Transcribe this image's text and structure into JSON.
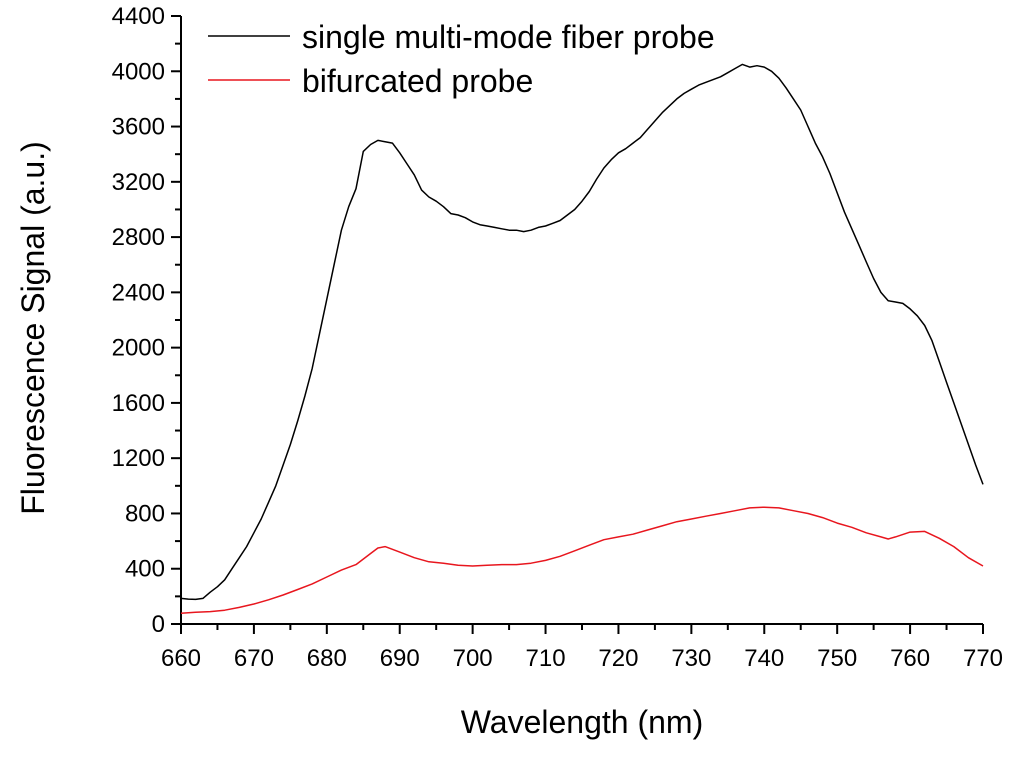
{
  "chart_data": {
    "type": "line",
    "title": "",
    "xlabel": "Wavelength (nm)",
    "ylabel": "Fluorescence Signal (a.u.)",
    "xlim": [
      660,
      770
    ],
    "ylim": [
      0,
      4400
    ],
    "x_ticks": [
      660,
      670,
      680,
      690,
      700,
      710,
      720,
      730,
      740,
      750,
      760,
      770
    ],
    "y_ticks": [
      0,
      400,
      800,
      1200,
      1600,
      2000,
      2400,
      2800,
      3200,
      3600,
      4000,
      4400
    ],
    "grid": false,
    "legend_position": "top-left",
    "series": [
      {
        "name": "single multi-mode fiber probe",
        "color": "#000000",
        "points": [
          [
            660,
            185
          ],
          [
            661,
            180
          ],
          [
            662,
            178
          ],
          [
            663,
            185
          ],
          [
            664,
            230
          ],
          [
            665,
            270
          ],
          [
            666,
            320
          ],
          [
            667,
            400
          ],
          [
            668,
            480
          ],
          [
            669,
            560
          ],
          [
            670,
            660
          ],
          [
            671,
            760
          ],
          [
            672,
            880
          ],
          [
            673,
            1000
          ],
          [
            674,
            1150
          ],
          [
            675,
            1300
          ],
          [
            676,
            1470
          ],
          [
            677,
            1650
          ],
          [
            678,
            1850
          ],
          [
            679,
            2100
          ],
          [
            680,
            2350
          ],
          [
            681,
            2600
          ],
          [
            682,
            2850
          ],
          [
            683,
            3020
          ],
          [
            684,
            3150
          ],
          [
            685,
            3420
          ],
          [
            686,
            3470
          ],
          [
            687,
            3500
          ],
          [
            688,
            3490
          ],
          [
            689,
            3480
          ],
          [
            690,
            3410
          ],
          [
            691,
            3330
          ],
          [
            692,
            3250
          ],
          [
            693,
            3140
          ],
          [
            694,
            3090
          ],
          [
            695,
            3060
          ],
          [
            696,
            3020
          ],
          [
            697,
            2970
          ],
          [
            698,
            2960
          ],
          [
            699,
            2940
          ],
          [
            700,
            2910
          ],
          [
            701,
            2890
          ],
          [
            702,
            2880
          ],
          [
            703,
            2870
          ],
          [
            704,
            2860
          ],
          [
            705,
            2850
          ],
          [
            706,
            2850
          ],
          [
            707,
            2840
          ],
          [
            708,
            2850
          ],
          [
            709,
            2870
          ],
          [
            710,
            2880
          ],
          [
            711,
            2900
          ],
          [
            712,
            2920
          ],
          [
            713,
            2960
          ],
          [
            714,
            3000
          ],
          [
            715,
            3060
          ],
          [
            716,
            3130
          ],
          [
            717,
            3220
          ],
          [
            718,
            3300
          ],
          [
            719,
            3360
          ],
          [
            720,
            3410
          ],
          [
            721,
            3440
          ],
          [
            722,
            3480
          ],
          [
            723,
            3520
          ],
          [
            724,
            3580
          ],
          [
            725,
            3640
          ],
          [
            726,
            3700
          ],
          [
            727,
            3750
          ],
          [
            728,
            3800
          ],
          [
            729,
            3840
          ],
          [
            730,
            3870
          ],
          [
            731,
            3900
          ],
          [
            732,
            3920
          ],
          [
            733,
            3940
          ],
          [
            734,
            3960
          ],
          [
            735,
            3990
          ],
          [
            736,
            4020
          ],
          [
            737,
            4050
          ],
          [
            738,
            4030
          ],
          [
            739,
            4040
          ],
          [
            740,
            4030
          ],
          [
            741,
            4000
          ],
          [
            742,
            3950
          ],
          [
            743,
            3880
          ],
          [
            744,
            3800
          ],
          [
            745,
            3720
          ],
          [
            746,
            3600
          ],
          [
            747,
            3480
          ],
          [
            748,
            3380
          ],
          [
            749,
            3260
          ],
          [
            750,
            3120
          ],
          [
            751,
            2980
          ],
          [
            752,
            2860
          ],
          [
            753,
            2740
          ],
          [
            754,
            2620
          ],
          [
            755,
            2500
          ],
          [
            756,
            2400
          ],
          [
            757,
            2340
          ],
          [
            758,
            2330
          ],
          [
            759,
            2320
          ],
          [
            760,
            2280
          ],
          [
            761,
            2230
          ],
          [
            762,
            2160
          ],
          [
            763,
            2050
          ],
          [
            764,
            1900
          ],
          [
            765,
            1750
          ],
          [
            766,
            1600
          ],
          [
            767,
            1450
          ],
          [
            768,
            1300
          ],
          [
            769,
            1150
          ],
          [
            770,
            1010
          ]
        ]
      },
      {
        "name": "bifurcated probe",
        "color": "#e8161e",
        "points": [
          [
            660,
            78
          ],
          [
            662,
            85
          ],
          [
            664,
            90
          ],
          [
            666,
            100
          ],
          [
            668,
            120
          ],
          [
            670,
            145
          ],
          [
            672,
            175
          ],
          [
            674,
            210
          ],
          [
            676,
            250
          ],
          [
            678,
            290
          ],
          [
            680,
            340
          ],
          [
            682,
            390
          ],
          [
            684,
            430
          ],
          [
            686,
            510
          ],
          [
            687,
            550
          ],
          [
            688,
            560
          ],
          [
            690,
            520
          ],
          [
            692,
            480
          ],
          [
            694,
            450
          ],
          [
            696,
            440
          ],
          [
            698,
            425
          ],
          [
            700,
            420
          ],
          [
            702,
            425
          ],
          [
            704,
            430
          ],
          [
            706,
            430
          ],
          [
            708,
            440
          ],
          [
            710,
            460
          ],
          [
            712,
            490
          ],
          [
            714,
            530
          ],
          [
            716,
            570
          ],
          [
            718,
            610
          ],
          [
            720,
            630
          ],
          [
            722,
            650
          ],
          [
            724,
            680
          ],
          [
            726,
            710
          ],
          [
            728,
            740
          ],
          [
            730,
            760
          ],
          [
            732,
            780
          ],
          [
            734,
            800
          ],
          [
            736,
            820
          ],
          [
            738,
            840
          ],
          [
            740,
            845
          ],
          [
            742,
            840
          ],
          [
            744,
            820
          ],
          [
            746,
            800
          ],
          [
            748,
            770
          ],
          [
            750,
            730
          ],
          [
            752,
            700
          ],
          [
            754,
            660
          ],
          [
            756,
            630
          ],
          [
            757,
            615
          ],
          [
            758,
            630
          ],
          [
            760,
            665
          ],
          [
            762,
            670
          ],
          [
            764,
            620
          ],
          [
            766,
            560
          ],
          [
            768,
            480
          ],
          [
            770,
            420
          ]
        ]
      }
    ]
  }
}
